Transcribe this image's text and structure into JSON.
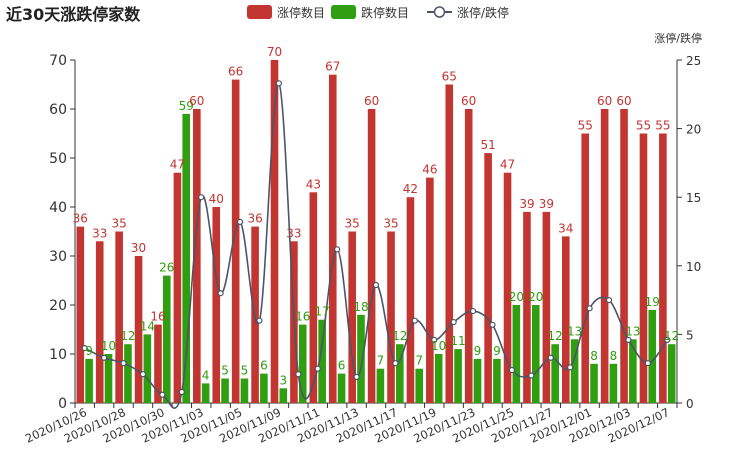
{
  "chart_data": {
    "type": "bar",
    "title": "近30天涨跌停家数",
    "right_axis_label": "涨停/跌停",
    "legend": {
      "placement": "top-center",
      "items": [
        {
          "name": "涨停数目",
          "color": "#c23531",
          "kind": "bar"
        },
        {
          "name": "跌停数目",
          "color": "#2f9e10",
          "kind": "bar"
        },
        {
          "name": "涨停/跌停",
          "color": "#4a5568",
          "kind": "line"
        }
      ]
    },
    "x_tick_labels": [
      "2020/10/26",
      "2020/10/28",
      "2020/10/30",
      "2020/11/03",
      "2020/11/05",
      "2020/11/09",
      "2020/11/11",
      "2020/11/13",
      "2020/11/17",
      "2020/11/19",
      "2020/11/23",
      "2020/11/25",
      "2020/11/27",
      "2020/12/01",
      "2020/12/03",
      "2020/12/07"
    ],
    "category_count": 31,
    "ylim_left": [
      0,
      70
    ],
    "yticks_left": [
      0,
      10,
      20,
      30,
      40,
      50,
      60,
      70
    ],
    "ylim_right": [
      0,
      25
    ],
    "yticks_right": [
      0,
      5,
      10,
      15,
      20,
      25
    ],
    "grid": false,
    "series": [
      {
        "name": "涨停数目",
        "color": "#c23531",
        "values": [
          36,
          33,
          35,
          30,
          16,
          47,
          60,
          40,
          66,
          36,
          70,
          33,
          43,
          67,
          35,
          60,
          35,
          42,
          46,
          65,
          60,
          51,
          47,
          39,
          39,
          34,
          55,
          60,
          60,
          55,
          55
        ]
      },
      {
        "name": "跌停数目",
        "color": "#2f9e10",
        "values": [
          9,
          10,
          12,
          14,
          26,
          59,
          4,
          5,
          5,
          6,
          3,
          16,
          17,
          6,
          18,
          7,
          12,
          7,
          10,
          11,
          9,
          9,
          20,
          20,
          12,
          13,
          8,
          8,
          13,
          19,
          12
        ]
      },
      {
        "name": "涨停/跌停",
        "color": "#4a5568",
        "axis": "right",
        "values": [
          4.0,
          3.3,
          2.9,
          2.1,
          0.6,
          0.8,
          15.0,
          8.0,
          13.2,
          6.0,
          23.3,
          2.1,
          2.5,
          11.2,
          1.9,
          8.6,
          2.9,
          6.0,
          4.6,
          5.9,
          6.7,
          5.7,
          2.4,
          2.0,
          3.3,
          2.6,
          6.9,
          7.5,
          4.6,
          2.9,
          4.6
        ]
      }
    ]
  }
}
